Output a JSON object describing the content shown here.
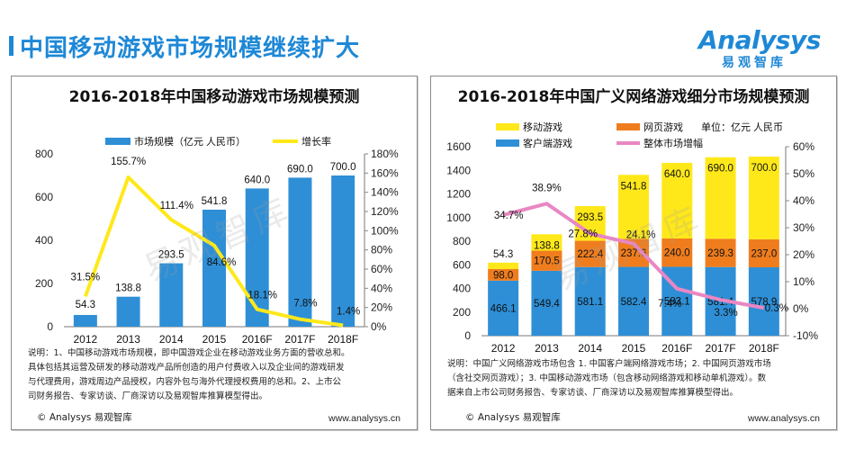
{
  "page": {
    "title": "中国移动游戏市场规模继续扩大",
    "accent_color": "#1e88d6"
  },
  "logo": {
    "word": "Analysys",
    "sub": "易观智库"
  },
  "watermark": "易观智库",
  "chart_data": [
    {
      "type": "bar",
      "title": "2016-2018年中国移动游戏市场规模预测",
      "categories": [
        "2012",
        "2013",
        "2014",
        "2015",
        "2016F",
        "2017F",
        "2018F"
      ],
      "series": [
        {
          "name": "市场规模（亿元 人民币）",
          "kind": "bar",
          "axis": "left",
          "color": "#2e8fd6",
          "values": [
            54.3,
            138.8,
            293.5,
            541.8,
            640.0,
            690.0,
            700.0
          ],
          "labels": [
            "54.3",
            "138.8",
            "293.5",
            "541.8",
            "640.0",
            "690.0",
            "700.0"
          ]
        },
        {
          "name": "增长率",
          "kind": "line",
          "axis": "right",
          "color": "#ffe81a",
          "values": [
            31.5,
            155.7,
            111.4,
            84.6,
            18.1,
            7.8,
            1.4
          ],
          "labels": [
            "31.5%",
            "155.7%",
            "111.4%",
            "84.6%",
            "18.1%",
            "7.8%",
            "1.4%"
          ]
        }
      ],
      "ylim": [
        0,
        800
      ],
      "yticks": [
        "0",
        "200",
        "400",
        "600",
        "800"
      ],
      "y2lim": [
        0,
        180
      ],
      "y2ticks": [
        "0%",
        "20%",
        "40%",
        "60%",
        "80%",
        "100%",
        "120%",
        "140%",
        "160%",
        "180%"
      ],
      "legend": "top",
      "notes": [
        "说明：1、中国移动游戏市场规模，即中国游戏企业在移动游戏业务方面的营收总和。",
        "具体包括其运营及研发的移动游戏产品所创造的用户付费收入以及企业间的游戏研发",
        "与代理费用，游戏周边产品授权，内容外包与海外代理授权费用的总和。2、上市公",
        "司财务报告、专家访谈、厂商深访以及易观智库推算模型得出。"
      ],
      "copyright": "© Analysys 易观智库",
      "website": "www.analysys.cn"
    },
    {
      "type": "bar",
      "stacked": true,
      "title": "2016-2018年中国广义网络游戏细分市场规模预测",
      "unit": "单位：亿元 人民币",
      "categories": [
        "2012",
        "2013",
        "2014",
        "2015",
        "2016F",
        "2017F",
        "2018F"
      ],
      "series": [
        {
          "name": "客户端游戏",
          "kind": "bar",
          "color": "#2e8fd6",
          "values": [
            466.1,
            549.4,
            581.1,
            582.4,
            583.1,
            581.4,
            578.9
          ],
          "labels": [
            "466.1",
            "549.4",
            "581.1",
            "582.4",
            "583.1",
            "581.4",
            "578.9"
          ]
        },
        {
          "name": "网页游戏",
          "kind": "bar",
          "color": "#ef7d1e",
          "values": [
            98.0,
            170.5,
            222.4,
            237.6,
            240.0,
            239.3,
            237.0
          ],
          "labels": [
            "98.0",
            "170.5",
            "222.4",
            "237.6",
            "240.0",
            "239.3",
            "237.0"
          ]
        },
        {
          "name": "移动游戏",
          "kind": "bar",
          "color": "#ffe81a",
          "values": [
            54.3,
            138.8,
            293.5,
            541.8,
            640.0,
            690.0,
            700.0
          ],
          "labels": [
            "54.3",
            "138.8",
            "293.5",
            "541.8",
            "640.0",
            "690.0",
            "700.0"
          ]
        },
        {
          "name": "整体市场增幅",
          "kind": "line",
          "axis": "right",
          "color": "#e987c3",
          "values": [
            34.7,
            38.9,
            27.8,
            24.1,
            7.4,
            3.3,
            0.3
          ],
          "labels": [
            "34.7%",
            "38.9%",
            "27.8%",
            "24.1%",
            "7.4%",
            "3.3%",
            "0.3%"
          ]
        }
      ],
      "legend_order": [
        "移动游戏",
        "网页游戏",
        "客户端游戏",
        "整体市场增幅"
      ],
      "ylim": [
        0,
        1600
      ],
      "yticks": [
        "0",
        "200",
        "400",
        "600",
        "800",
        "1000",
        "1200",
        "1400",
        "1600"
      ],
      "y2lim": [
        -10,
        60
      ],
      "y2ticks": [
        "-10%",
        "0%",
        "10%",
        "20%",
        "30%",
        "40%",
        "50%",
        "60%"
      ],
      "notes": [
        "说明：中国广义网络游戏市场包含 1. 中国客户端网络游戏市场；2. 中国网页游戏市场",
        "（含社交网页游戏）；3. 中国移动游戏市场（包含移动网络游戏和移动单机游戏）。数",
        "据来自上市公司财务报告、专家访谈、厂商深访以及易观智库推算模型得出。"
      ],
      "copyright": "© Analysys 易观智库",
      "website": "www.analysys.cn"
    }
  ]
}
